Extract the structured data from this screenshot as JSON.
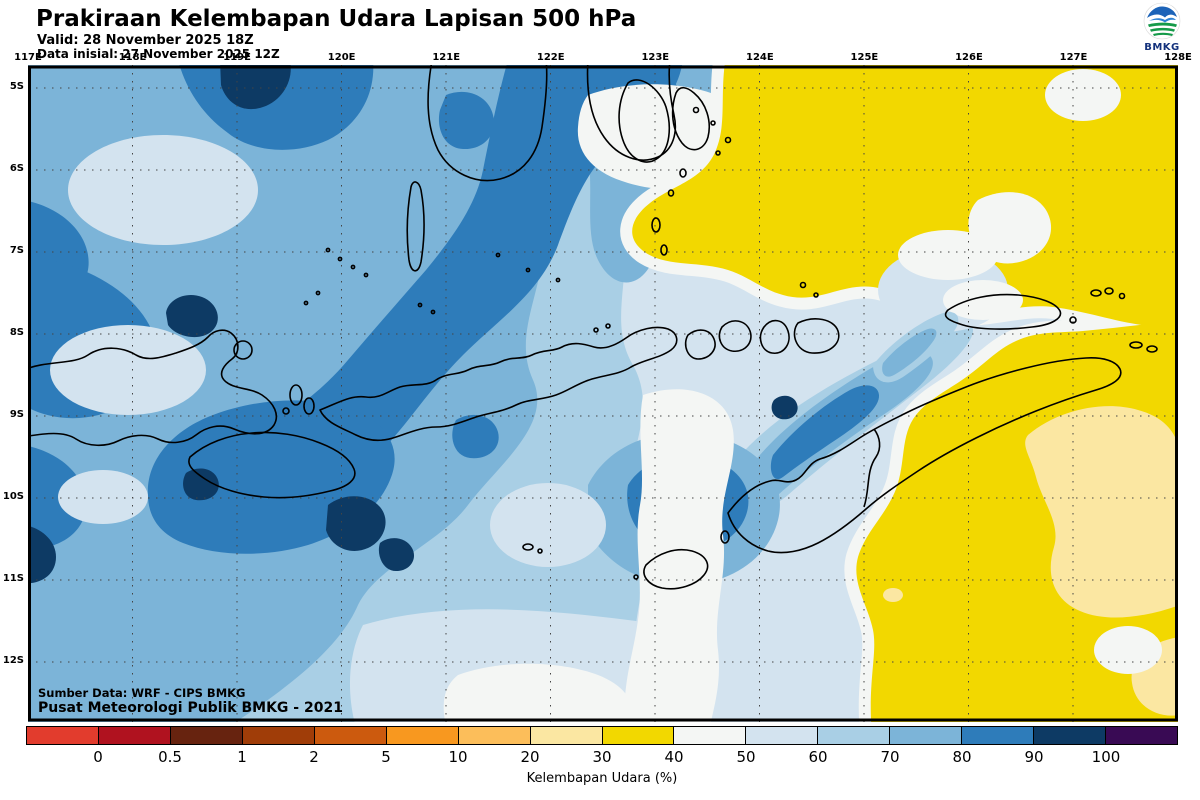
{
  "header": {
    "title": "Prakiraan Kelembapan Udara Lapisan 500 hPa",
    "valid": "Valid: 28 November 2025 18Z",
    "init": "Data inisial: 27 November 2025 12Z",
    "logo_text": "BMKG"
  },
  "axes": {
    "lon": [
      "117E",
      "118E",
      "119E",
      "120E",
      "121E",
      "122E",
      "123E",
      "124E",
      "125E",
      "126E",
      "127E",
      "128E"
    ],
    "lat": [
      "5S",
      "6S",
      "7S",
      "8S",
      "9S",
      "10S",
      "11S",
      "12S"
    ]
  },
  "legend": {
    "values": [
      "0",
      "0.5",
      "1",
      "2",
      "5",
      "10",
      "20",
      "30",
      "40",
      "50",
      "60",
      "70",
      "80",
      "90",
      "100"
    ],
    "colors": [
      "#e23c2d",
      "#b0121f",
      "#67230f",
      "#a03d08",
      "#cc5a0e",
      "#f8981f",
      "#fcbe5a",
      "#fbe7a2",
      "#f2d800",
      "#f4f6f4",
      "#d3e3ef",
      "#a9cfe5",
      "#7cb4d8",
      "#2e7cba",
      "#0d3a64",
      "#390a54"
    ],
    "caption": "Kelembapan Udara (%)"
  },
  "source": {
    "line1": "Sumber Data: WRF - CIPS BMKG",
    "line2": "Pusat Meteorologi Publik BMKG - 2021"
  }
}
